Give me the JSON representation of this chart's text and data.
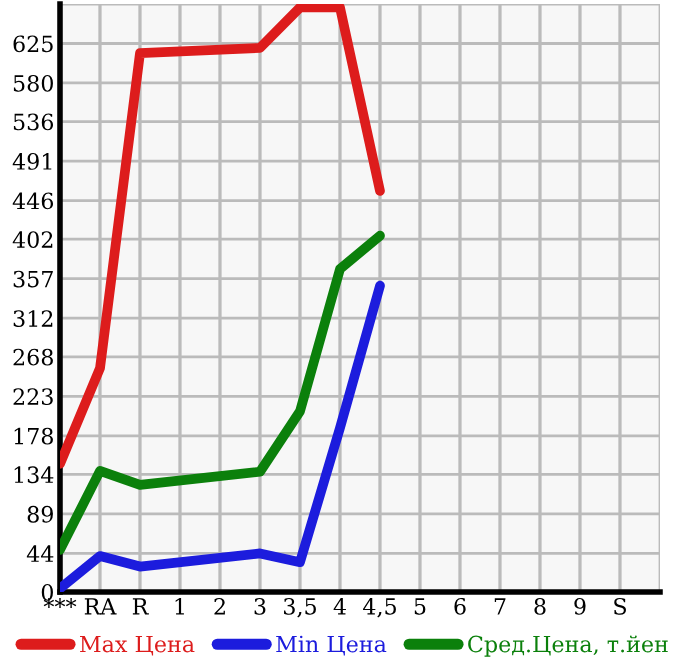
{
  "chart_data": {
    "type": "line",
    "categories": [
      "***",
      "RA",
      "R",
      "1",
      "2",
      "3",
      "3,5",
      "4",
      "4,5",
      "5",
      "6",
      "7",
      "8",
      "9",
      "S"
    ],
    "series": [
      {
        "name": "Max Цена",
        "color": "#dd1c1c",
        "values": [
          146,
          255,
          614,
          null,
          null,
          620,
          666,
          666,
          457,
          null,
          null,
          null,
          null,
          null,
          null
        ]
      },
      {
        "name": "Min Цена",
        "color": "#1c1cdd",
        "values": [
          4,
          41,
          29,
          null,
          null,
          44,
          34,
          187,
          349,
          null,
          null,
          null,
          null,
          null,
          null
        ]
      },
      {
        "name": "Сред.Цена, т.йен",
        "color": "#0b800b",
        "values": [
          48,
          138,
          122,
          null,
          null,
          137,
          206,
          368,
          406,
          null,
          null,
          null,
          null,
          null,
          null
        ]
      }
    ],
    "ylim": [
      0,
      670
    ],
    "yticks": [
      0,
      44,
      89,
      134,
      178,
      223,
      268,
      312,
      357,
      402,
      446,
      491,
      536,
      580,
      625,
      {
        "value": 670,
        "label": null
      }
    ],
    "grid": true,
    "legend": "bottom",
    "marker": "none",
    "line_style": "solid"
  }
}
